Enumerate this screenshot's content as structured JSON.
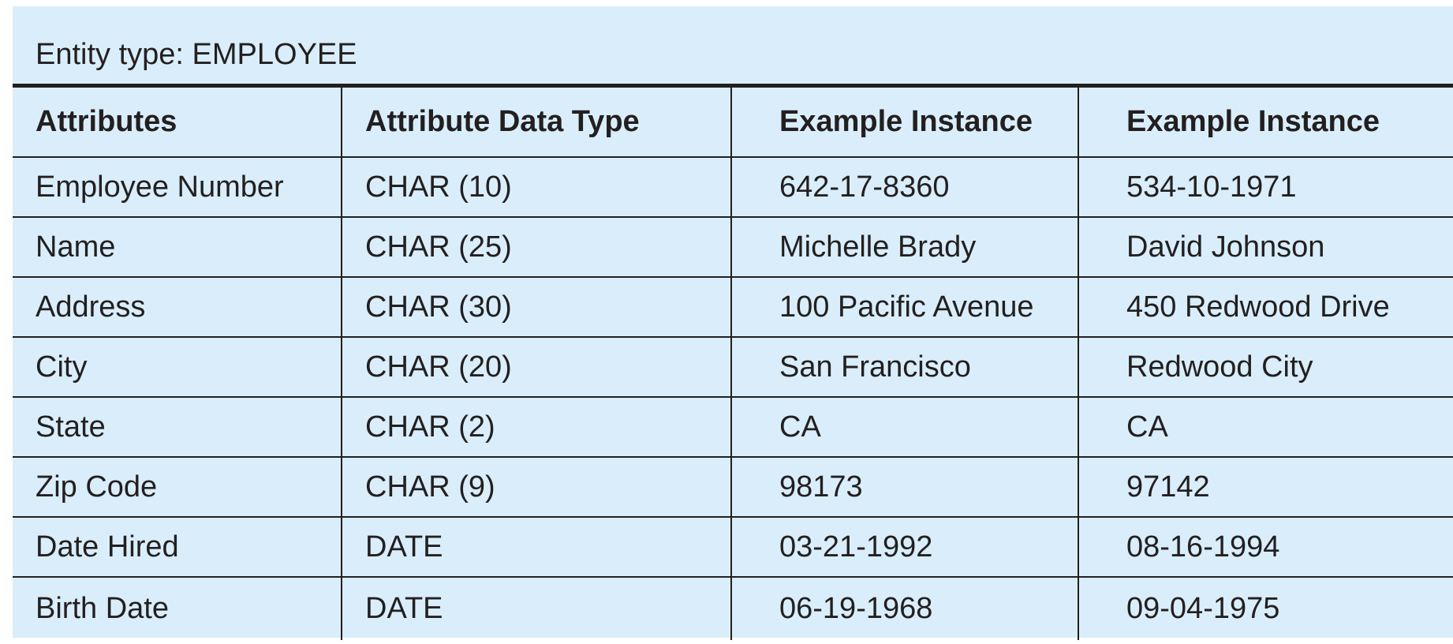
{
  "caption": "Entity type: EMPLOYEE",
  "table": {
    "headers": [
      "Attributes",
      "Attribute Data Type",
      "Example Instance",
      "Example Instance"
    ],
    "rows": [
      [
        "Employee Number",
        "CHAR (10)",
        "642-17-8360",
        "534-10-1971"
      ],
      [
        "Name",
        "CHAR (25)",
        "Michelle Brady",
        "David Johnson"
      ],
      [
        "Address",
        "CHAR (30)",
        "100 Pacific Avenue",
        "450 Redwood Drive"
      ],
      [
        "City",
        "CHAR (20)",
        "San Francisco",
        "Redwood City"
      ],
      [
        "State",
        "CHAR (2)",
        "CA",
        "CA"
      ],
      [
        "Zip Code",
        "CHAR (9)",
        "98173",
        "97142"
      ],
      [
        "Date Hired",
        "DATE",
        "03-21-1992",
        "08-16-1994"
      ],
      [
        "Birth Date",
        "DATE",
        "06-19-1968",
        "09-04-1975"
      ]
    ]
  },
  "colors": {
    "background": "#d9eefa",
    "text": "#231f20",
    "rule": "#231f20"
  }
}
